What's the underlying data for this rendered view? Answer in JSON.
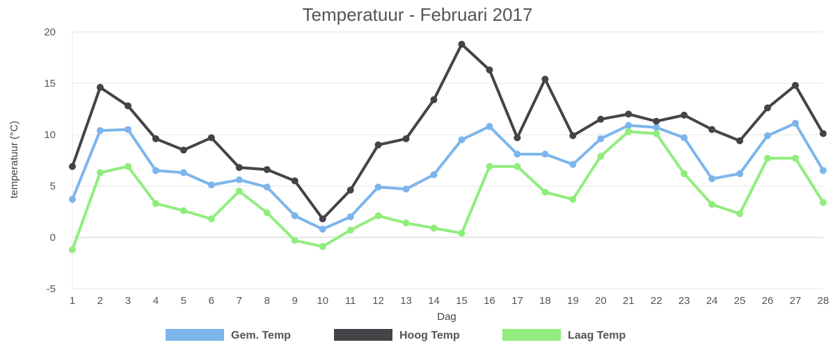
{
  "chart_data": {
    "type": "line",
    "title": "Temperatuur - Februari 2017",
    "xlabel": "Dag",
    "ylabel": "temperatuur (°C)",
    "ylim": [
      -5,
      20
    ],
    "yticks": [
      -5,
      0,
      5,
      10,
      15,
      20
    ],
    "grid": true,
    "legend_position": "bottom",
    "x": [
      "1",
      "2",
      "3",
      "4",
      "5",
      "6",
      "7",
      "8",
      "9",
      "10",
      "11",
      "12",
      "13",
      "14",
      "15",
      "16",
      "17",
      "18",
      "19",
      "20",
      "21",
      "22",
      "23",
      "24",
      "25",
      "26",
      "27",
      "28"
    ],
    "series": [
      {
        "name": "Gem. Temp",
        "color": "#7cb5ec",
        "values": [
          3.7,
          10.4,
          10.5,
          6.5,
          6.3,
          5.1,
          5.6,
          4.9,
          2.1,
          0.8,
          2.0,
          4.9,
          4.7,
          6.1,
          9.5,
          10.8,
          8.1,
          8.1,
          7.1,
          9.6,
          10.9,
          10.7,
          9.7,
          5.7,
          6.2,
          9.9,
          11.1,
          6.5
        ]
      },
      {
        "name": "Hoog Temp",
        "color": "#434348",
        "values": [
          6.9,
          14.6,
          12.8,
          9.6,
          8.5,
          9.7,
          6.8,
          6.6,
          5.5,
          1.8,
          4.6,
          9.0,
          9.6,
          13.4,
          18.8,
          16.3,
          9.7,
          15.4,
          9.9,
          11.5,
          12.0,
          11.3,
          11.9,
          10.5,
          9.4,
          12.6,
          14.8,
          10.1
        ]
      },
      {
        "name": "Laag Temp",
        "color": "#90ed7d",
        "values": [
          -1.2,
          6.3,
          6.9,
          3.3,
          2.6,
          1.8,
          4.5,
          2.4,
          -0.3,
          -0.9,
          0.7,
          2.1,
          1.4,
          0.9,
          0.4,
          6.9,
          6.9,
          4.4,
          3.7,
          7.9,
          10.3,
          10.1,
          6.2,
          3.2,
          2.3,
          7.7,
          7.7,
          3.4
        ]
      }
    ]
  }
}
